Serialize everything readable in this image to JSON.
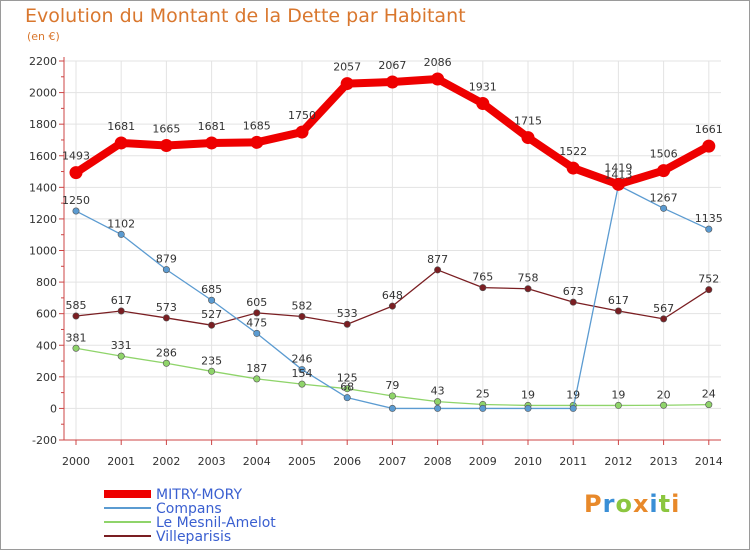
{
  "header": {
    "title": "Evolution du Montant de la Dette par Habitant",
    "unit": "(en €)"
  },
  "logo": {
    "letters": [
      "P",
      "r",
      "o",
      "x",
      "i",
      "t",
      "i"
    ],
    "colors": [
      "#e8892a",
      "#3a8fd6",
      "#8cc63f",
      "#e8892a",
      "#3a8fd6",
      "#8cc63f",
      "#e8892a"
    ]
  },
  "chart_data": {
    "type": "line",
    "title": "Evolution du Montant de la Dette par Habitant",
    "ylabel": "(en €)",
    "x": [
      "2000",
      "2001",
      "2002",
      "2003",
      "2004",
      "2005",
      "2006",
      "2007",
      "2008",
      "2009",
      "2010",
      "2011",
      "2012",
      "2013",
      "2014"
    ],
    "ylim": [
      -200,
      2200
    ],
    "yticks": [
      -200,
      0,
      200,
      400,
      600,
      800,
      1000,
      1200,
      1400,
      1600,
      1800,
      2000,
      2200
    ],
    "grid": true,
    "legend": "bottom-left",
    "series": [
      {
        "name": "Villeparisis",
        "color": "#7a1e22",
        "values": [
          585,
          617,
          573,
          527,
          605,
          582,
          533,
          648,
          877,
          765,
          758,
          673,
          617,
          567,
          752
        ],
        "labels": [
          "585",
          "617",
          "573",
          "527",
          "605",
          "582",
          "533",
          "648",
          "877",
          "765",
          "758",
          "673",
          "617",
          "567",
          "752"
        ]
      },
      {
        "name": "Le Mesnil-Amelot",
        "color": "#8fd46a",
        "values": [
          381,
          331,
          286,
          235,
          187,
          154,
          125,
          79,
          43,
          25,
          19,
          19,
          19,
          20,
          24
        ],
        "labels": [
          "381",
          "331",
          "286",
          "235",
          "187",
          "154",
          "125",
          "79",
          "43",
          "25",
          "19",
          "19",
          "19",
          "20",
          "24"
        ]
      },
      {
        "name": "Compans",
        "color": "#5b9bd1",
        "values": [
          1250,
          1102,
          879,
          685,
          475,
          246,
          68,
          0,
          0,
          0,
          0,
          0,
          1413,
          1267,
          1135
        ],
        "labels": [
          "1250",
          "1102",
          "879",
          "685",
          "475",
          "246",
          "68",
          "",
          "",
          "",
          "",
          "",
          "1413",
          "1267",
          "1135"
        ]
      },
      {
        "name": "MITRY-MORY",
        "color": "#ee0000",
        "values": [
          1493,
          1681,
          1665,
          1681,
          1685,
          1750,
          2057,
          2067,
          2086,
          1931,
          1715,
          1522,
          1419,
          1506,
          1661
        ],
        "labels": [
          "1493",
          "1681",
          "1665",
          "1681",
          "1685",
          "1750",
          "2057",
          "2067",
          "2086",
          "1931",
          "1715",
          "1522",
          "1419",
          "1506",
          "1661"
        ]
      }
    ],
    "legend_entries": [
      {
        "name": "MITRY-MORY",
        "color": "#ee0000",
        "text_color": "#3a5fd0"
      },
      {
        "name": "Compans",
        "color": "#5b9bd1",
        "text_color": "#3a5fd0"
      },
      {
        "name": "Le Mesnil-Amelot",
        "color": "#8fd46a",
        "text_color": "#3a5fd0"
      },
      {
        "name": "Villeparisis",
        "color": "#7a1e22",
        "text_color": "#3a5fd0"
      }
    ]
  }
}
